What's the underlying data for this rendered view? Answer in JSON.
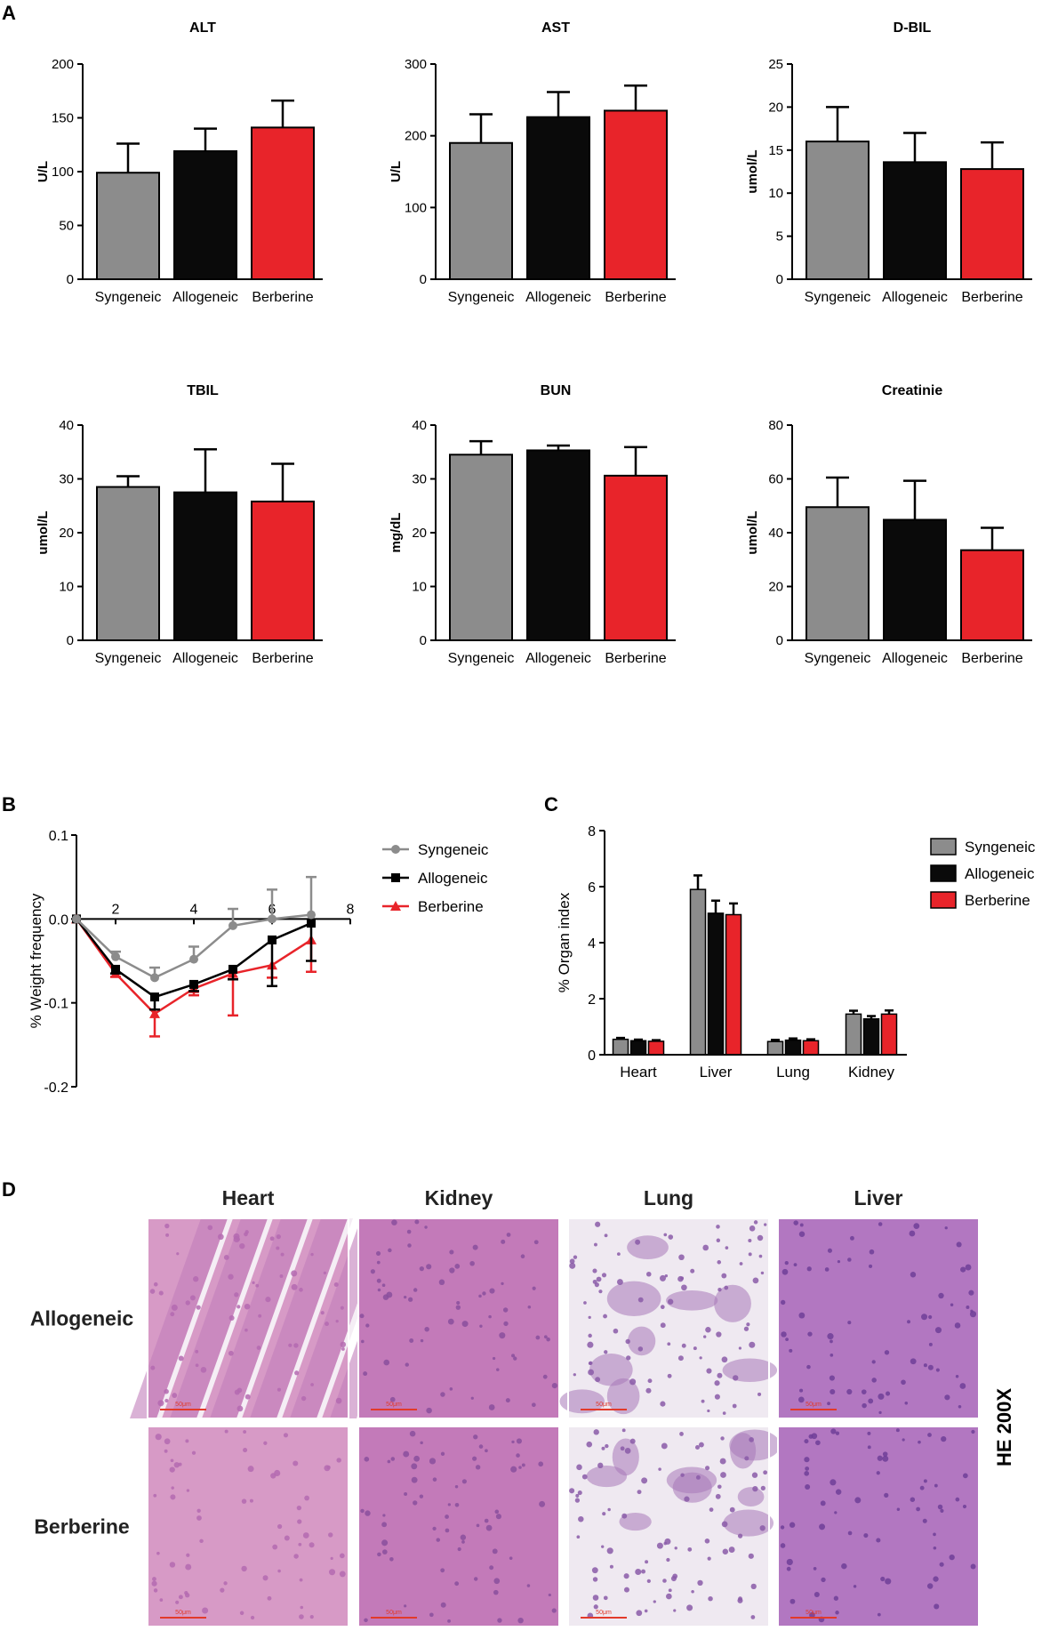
{
  "panel_labels": {
    "a": "A",
    "b": "B",
    "c": "C",
    "d": "D"
  },
  "groups": [
    "Syngeneic",
    "Allogeneic",
    "Berberine"
  ],
  "colors": {
    "Syngeneic": "#8c8c8c",
    "Allogeneic": "#0a0a0a",
    "Berberine": "#e8242a",
    "line_syngeneic": "#8c8c8c",
    "line_allogeneic": "#000000",
    "line_berberine": "#e8242a"
  },
  "chart_data": [
    {
      "id": "alt",
      "type": "bar",
      "title": "ALT",
      "ylabel": "U/L",
      "categories": [
        "Syngeneic",
        "Allogeneic",
        "Berberine"
      ],
      "values": [
        99,
        119,
        141
      ],
      "errors": [
        27,
        21,
        25
      ],
      "ylim": [
        0,
        200
      ],
      "yticks": [
        "0",
        "50",
        "100",
        "150",
        "200"
      ]
    },
    {
      "id": "ast",
      "type": "bar",
      "title": "AST",
      "ylabel": "U/L",
      "categories": [
        "Syngeneic",
        "Allogeneic",
        "Berberine"
      ],
      "values": [
        190,
        226,
        235
      ],
      "errors": [
        40,
        35,
        35
      ],
      "ylim": [
        0,
        300
      ],
      "yticks": [
        "0",
        "100",
        "200",
        "300"
      ]
    },
    {
      "id": "dbil",
      "type": "bar",
      "title": "D-BIL",
      "ylabel": "umol/L",
      "categories": [
        "Syngeneic",
        "Allogeneic",
        "Berberine"
      ],
      "values": [
        16,
        13.6,
        12.8
      ],
      "errors": [
        4,
        3.4,
        3.1
      ],
      "ylim": [
        0,
        25
      ],
      "yticks": [
        "0",
        "5",
        "10",
        "15",
        "20",
        "25"
      ]
    },
    {
      "id": "tbil",
      "type": "bar",
      "title": "TBIL",
      "ylabel": "umol/L",
      "categories": [
        "Syngeneic",
        "Allogeneic",
        "Berberine"
      ],
      "values": [
        28.5,
        27.5,
        25.8
      ],
      "errors": [
        2,
        8,
        7
      ],
      "ylim": [
        0,
        40
      ],
      "yticks": [
        "0",
        "10",
        "20",
        "30",
        "40"
      ]
    },
    {
      "id": "bun",
      "type": "bar",
      "title": "BUN",
      "ylabel": "mg/dL",
      "categories": [
        "Syngeneic",
        "Allogeneic",
        "Berberine"
      ],
      "values": [
        34.5,
        35.3,
        30.6
      ],
      "errors": [
        2.5,
        0.9,
        5.3
      ],
      "ylim": [
        0,
        40
      ],
      "yticks": [
        "0",
        "10",
        "20",
        "30",
        "40"
      ]
    },
    {
      "id": "creatinie",
      "type": "bar",
      "title": "Creatinie",
      "ylabel": "umol/L",
      "categories": [
        "Syngeneic",
        "Allogeneic",
        "Berberine"
      ],
      "values": [
        49.5,
        44.8,
        33.5
      ],
      "errors": [
        11,
        14.5,
        8.3
      ],
      "ylim": [
        0,
        80
      ],
      "yticks": [
        "0",
        "20",
        "40",
        "60",
        "80"
      ]
    },
    {
      "id": "weight",
      "type": "line",
      "title": "",
      "xlabel": "",
      "ylabel": "% Weight frequency",
      "x": [
        1,
        2,
        3,
        4,
        5,
        6,
        7
      ],
      "xlim": [
        1,
        8
      ],
      "xticks": [
        "2",
        "4",
        "6",
        "8"
      ],
      "ylim": [
        -0.2,
        0.1
      ],
      "yticks": [
        "-0.2",
        "-0.1",
        "0.0",
        "0.1"
      ],
      "legend_position": "right",
      "series": [
        {
          "name": "Syngeneic",
          "values": [
            0,
            -0.045,
            -0.07,
            -0.048,
            -0.008,
            0,
            0.005
          ],
          "errors": [
            0,
            0.006,
            0.012,
            0.015,
            0.02,
            0.035,
            0.045
          ],
          "marker": "circle"
        },
        {
          "name": "Allogeneic",
          "values": [
            0,
            -0.06,
            -0.093,
            -0.078,
            -0.06,
            -0.025,
            -0.005
          ],
          "errors": [
            0,
            0.005,
            0.015,
            0.008,
            0.012,
            0.055,
            0.045
          ],
          "marker": "square"
        },
        {
          "name": "Berberine",
          "values": [
            0,
            -0.065,
            -0.113,
            -0.083,
            -0.065,
            -0.055,
            -0.025
          ],
          "errors": [
            0,
            0.004,
            0.027,
            0.008,
            0.05,
            0.015,
            0.038
          ],
          "marker": "triangle"
        }
      ]
    },
    {
      "id": "organ",
      "type": "bar",
      "title": "",
      "xlabel": "",
      "ylabel": "% Organ index",
      "categories": [
        "Heart",
        "Liver",
        "Lung",
        "Kidney"
      ],
      "ylim": [
        0,
        8
      ],
      "yticks": [
        "0",
        "2",
        "4",
        "6",
        "8"
      ],
      "legend_position": "right",
      "series": [
        {
          "name": "Syngeneic",
          "values": [
            0.55,
            5.9,
            0.47,
            1.45
          ],
          "errors": [
            0.05,
            0.5,
            0.06,
            0.12
          ]
        },
        {
          "name": "Allogeneic",
          "values": [
            0.5,
            5.05,
            0.52,
            1.28
          ],
          "errors": [
            0.04,
            0.45,
            0.06,
            0.1
          ]
        },
        {
          "name": "Berberine",
          "values": [
            0.48,
            5.0,
            0.5,
            1.45
          ],
          "errors": [
            0.04,
            0.4,
            0.05,
            0.13
          ]
        }
      ]
    }
  ],
  "histology": {
    "columns": [
      "Heart",
      "Kidney",
      "Lung",
      "Liver"
    ],
    "rows": [
      "Allogeneic",
      "Berberine"
    ],
    "side_label": "HE 200X",
    "scale_bar": "50μm",
    "tissue_colors": {
      "Heart": [
        "#d79ac6",
        "#b46ab0"
      ],
      "Kidney": [
        "#c37ab9",
        "#8a4f9c"
      ],
      "Lung": [
        "#efe9f1",
        "#8a5aa8"
      ],
      "Liver": [
        "#b277c1",
        "#6e3e98"
      ]
    }
  }
}
